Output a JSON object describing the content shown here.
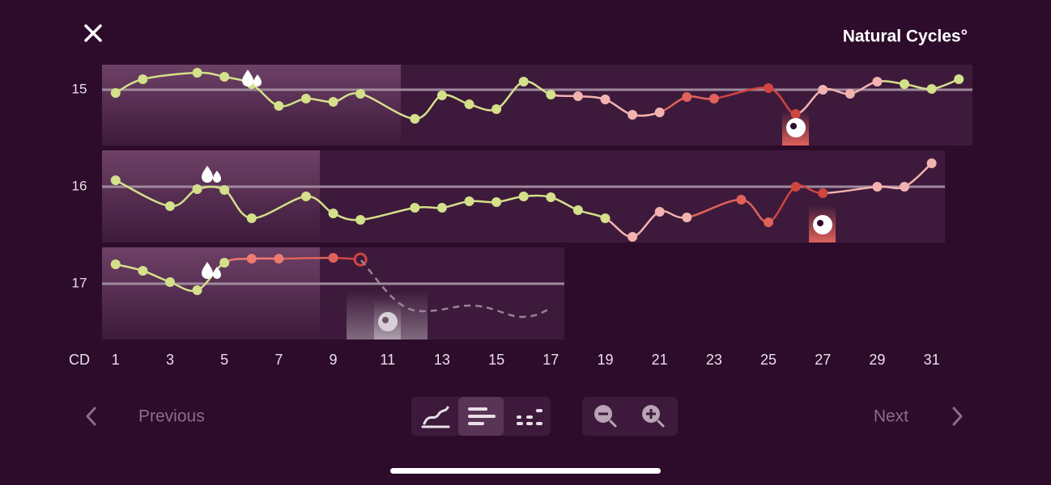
{
  "header": {
    "brand": "Natural Cycles°"
  },
  "chart_data": {
    "type": "line",
    "x_label": "CD",
    "xlim": [
      0.5,
      32.5
    ],
    "xticks": [
      1,
      3,
      5,
      7,
      9,
      11,
      13,
      15,
      17,
      19,
      21,
      23,
      25,
      27,
      29,
      31
    ],
    "series": [
      {
        "name": "15",
        "ylim": [
          -6.9,
          3.1
        ],
        "x": [
          1,
          2,
          4,
          5,
          6,
          7,
          8,
          9,
          10,
          12,
          13,
          14,
          15,
          16,
          17,
          18,
          19,
          20,
          21,
          22,
          23,
          25,
          26,
          27,
          28,
          29,
          30,
          31,
          32
        ],
        "values": [
          -0.4,
          1.3,
          2.1,
          1.6,
          0.7,
          -2,
          -1.1,
          -1.5,
          -0.5,
          -3.6,
          -0.7,
          -1.8,
          -2.4,
          1,
          -0.6,
          -0.8,
          -1.2,
          -3.1,
          -2.8,
          -0.9,
          -1.1,
          0.2,
          -3,
          0,
          -0.5,
          1,
          0.7,
          0.1,
          1.3
        ],
        "colors": [
          "#d4e08a",
          "#d4e08a",
          "#d4e08a",
          "#d4e08a",
          "#d4e08a",
          "#d4e08a",
          "#d4e08a",
          "#d4e08a",
          "#d4e08a",
          "#d4e08a",
          "#d4e08a",
          "#d4e08a",
          "#d4e08a",
          "#d4e08a",
          "#d4e08a",
          "#f2b3b0",
          "#f2b3b0",
          "#f2b3b0",
          "#f2b3b0",
          "#e0625a",
          "#e0625a",
          "#d0453e",
          "#d0453e",
          "#f2b3b0",
          "#f2b3b0",
          "#f2b3b0",
          "#d4e08a",
          "#d4e08a",
          "#d4e08a"
        ]
      },
      {
        "name": "16",
        "ylim": [
          -6.9,
          4.5
        ],
        "x": [
          1,
          3,
          4,
          5,
          6,
          8,
          9,
          10,
          12,
          13,
          14,
          15,
          16,
          17,
          18,
          19,
          20,
          21,
          22,
          24,
          25,
          26,
          27,
          29,
          30,
          31
        ],
        "values": [
          0.8,
          -2.4,
          -0.3,
          -0.4,
          -3.9,
          -1.2,
          -3.3,
          -4.1,
          -2.6,
          -2.6,
          -1.8,
          -1.9,
          -1.2,
          -1.3,
          -2.9,
          -3.9,
          -6.2,
          -3.1,
          -3.8,
          -1.6,
          -4.4,
          0,
          -0.8,
          0,
          0,
          2.9
        ],
        "colors": [
          "#d4e08a",
          "#d4e08a",
          "#d4e08a",
          "#d4e08a",
          "#d4e08a",
          "#d4e08a",
          "#d4e08a",
          "#d4e08a",
          "#d4e08a",
          "#d4e08a",
          "#d4e08a",
          "#d4e08a",
          "#d4e08a",
          "#d4e08a",
          "#d4e08a",
          "#d4e08a",
          "#f2b3b0",
          "#f2b3b0",
          "#f2b3b0",
          "#e0625a",
          "#e0625a",
          "#d0453e",
          "#d0453e",
          "#f2b3b0",
          "#f2b3b0",
          "#f2b3b0"
        ]
      },
      {
        "name": "17",
        "ylim": [
          -6.9,
          4.5
        ],
        "x": [
          1,
          2,
          3,
          4,
          5,
          6,
          7,
          9,
          10
        ],
        "values": [
          2.4,
          1.6,
          0.2,
          -0.8,
          2.6,
          3.1,
          3.1,
          3.2,
          3.0
        ],
        "colors": [
          "#d4e08a",
          "#d4e08a",
          "#d4e08a",
          "#d4e08a",
          "#d4e08a",
          "#ef7a70",
          "#ef7a70",
          "#e0625a",
          "#d0453e"
        ]
      }
    ]
  },
  "nav": {
    "previous": "Previous",
    "next": "Next"
  }
}
